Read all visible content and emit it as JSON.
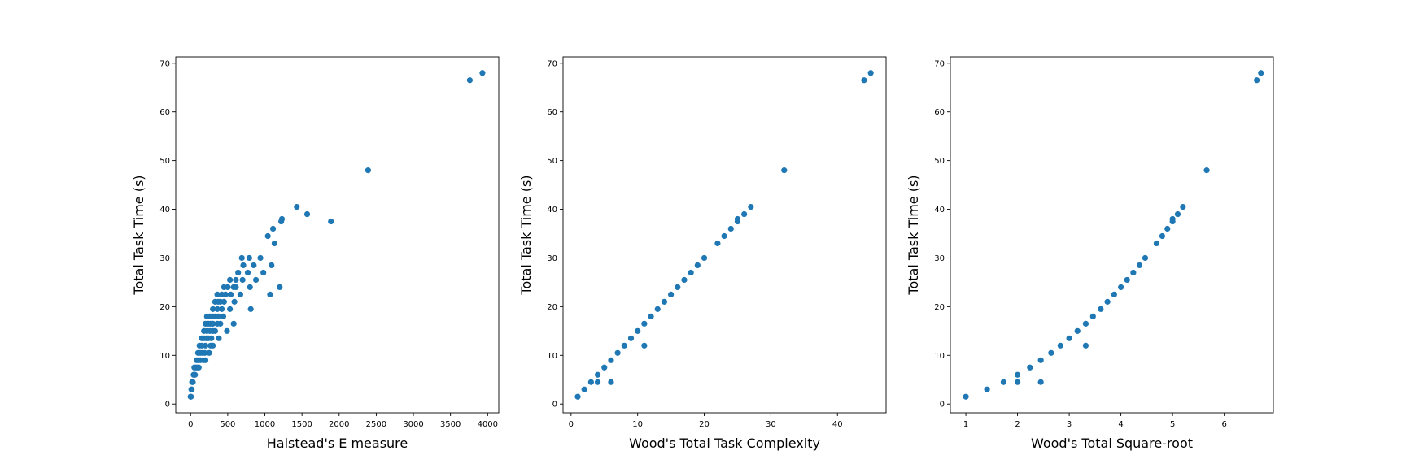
{
  "chart_data": [
    {
      "type": "scatter",
      "title": "",
      "xlabel": "Halstead's E measure",
      "ylabel": "Total Task Time (s)",
      "xlim": [
        -200,
        4150
      ],
      "ylim": [
        -1.8,
        71.3
      ],
      "xticks": [
        "0",
        "500",
        "1000",
        "1500",
        "2000",
        "2500",
        "3000",
        "3500",
        "4000"
      ],
      "yticks": [
        "0",
        "10",
        "20",
        "30",
        "40",
        "50",
        "60",
        "70"
      ],
      "xtick_values": [
        0,
        500,
        1000,
        1500,
        2000,
        2500,
        3000,
        3500,
        4000
      ],
      "ytick_values": [
        0,
        10,
        20,
        30,
        40,
        50,
        60,
        70
      ],
      "marker_color": "#1f77b4",
      "grid": false,
      "points": [
        [
          0,
          1.5
        ],
        [
          5,
          1.5
        ],
        [
          10,
          3
        ],
        [
          15,
          3
        ],
        [
          20,
          4.5
        ],
        [
          30,
          4.5
        ],
        [
          40,
          6
        ],
        [
          50,
          6
        ],
        [
          60,
          6
        ],
        [
          70,
          7.5
        ],
        [
          50,
          7.5
        ],
        [
          90,
          7.5
        ],
        [
          110,
          7.5
        ],
        [
          80,
          9
        ],
        [
          100,
          9
        ],
        [
          130,
          9
        ],
        [
          170,
          9
        ],
        [
          200,
          9
        ],
        [
          100,
          10.5
        ],
        [
          130,
          10.5
        ],
        [
          160,
          10.5
        ],
        [
          190,
          10.5
        ],
        [
          250,
          10.5
        ],
        [
          120,
          12
        ],
        [
          150,
          12
        ],
        [
          200,
          12
        ],
        [
          270,
          12
        ],
        [
          300,
          12
        ],
        [
          150,
          13.5
        ],
        [
          180,
          13.5
        ],
        [
          210,
          13.5
        ],
        [
          240,
          13.5
        ],
        [
          280,
          13.5
        ],
        [
          380,
          13.5
        ],
        [
          180,
          15
        ],
        [
          220,
          15
        ],
        [
          260,
          15
        ],
        [
          300,
          15
        ],
        [
          330,
          15
        ],
        [
          490,
          15
        ],
        [
          200,
          16.5
        ],
        [
          240,
          16.5
        ],
        [
          270,
          16.5
        ],
        [
          300,
          16.5
        ],
        [
          360,
          16.5
        ],
        [
          400,
          16.5
        ],
        [
          580,
          16.5
        ],
        [
          220,
          18
        ],
        [
          260,
          18
        ],
        [
          300,
          18
        ],
        [
          330,
          18
        ],
        [
          370,
          18
        ],
        [
          440,
          18
        ],
        [
          300,
          19.5
        ],
        [
          360,
          19.5
        ],
        [
          420,
          19.5
        ],
        [
          530,
          19.5
        ],
        [
          810,
          19.5
        ],
        [
          330,
          21
        ],
        [
          370,
          21
        ],
        [
          400,
          21
        ],
        [
          450,
          21
        ],
        [
          590,
          21
        ],
        [
          360,
          22.5
        ],
        [
          420,
          22.5
        ],
        [
          470,
          22.5
        ],
        [
          540,
          22.5
        ],
        [
          670,
          22.5
        ],
        [
          1070,
          22.5
        ],
        [
          450,
          24
        ],
        [
          500,
          24
        ],
        [
          580,
          24
        ],
        [
          610,
          24
        ],
        [
          800,
          24
        ],
        [
          1200,
          24
        ],
        [
          530,
          25.5
        ],
        [
          610,
          25.5
        ],
        [
          700,
          25.5
        ],
        [
          880,
          25.5
        ],
        [
          640,
          27
        ],
        [
          770,
          27
        ],
        [
          980,
          27
        ],
        [
          710,
          28.5
        ],
        [
          850,
          28.5
        ],
        [
          1090,
          28.5
        ],
        [
          690,
          30
        ],
        [
          790,
          30
        ],
        [
          940,
          30
        ],
        [
          1130,
          33
        ],
        [
          1040,
          34.5
        ],
        [
          1110,
          36
        ],
        [
          1220,
          37.5
        ],
        [
          1230,
          38
        ],
        [
          1570,
          39
        ],
        [
          1890,
          37.5
        ],
        [
          1430,
          40.5
        ],
        [
          2390,
          48
        ],
        [
          3760,
          66.5
        ],
        [
          3930,
          68
        ]
      ]
    },
    {
      "type": "scatter",
      "title": "",
      "xlabel": "Wood's Total Task Complexity",
      "ylabel": "Total Task Time (s)",
      "xlim": [
        -1.2,
        47.3
      ],
      "ylim": [
        -1.8,
        71.3
      ],
      "xticks": [
        "0",
        "10",
        "20",
        "30",
        "40"
      ],
      "yticks": [
        "0",
        "10",
        "20",
        "30",
        "40",
        "50",
        "60",
        "70"
      ],
      "xtick_values": [
        0,
        10,
        20,
        30,
        40
      ],
      "ytick_values": [
        0,
        10,
        20,
        30,
        40,
        50,
        60,
        70
      ],
      "marker_color": "#1f77b4",
      "grid": false,
      "points": [
        [
          1,
          1.5
        ],
        [
          2,
          3
        ],
        [
          3,
          4.5
        ],
        [
          4,
          4.5
        ],
        [
          4,
          6
        ],
        [
          5,
          7.5
        ],
        [
          6,
          4.5
        ],
        [
          6,
          9
        ],
        [
          7,
          10.5
        ],
        [
          8,
          12
        ],
        [
          9,
          13.5
        ],
        [
          10,
          15
        ],
        [
          11,
          12
        ],
        [
          11,
          16.5
        ],
        [
          12,
          18
        ],
        [
          13,
          19.5
        ],
        [
          14,
          21
        ],
        [
          15,
          22.5
        ],
        [
          16,
          24
        ],
        [
          17,
          25.5
        ],
        [
          18,
          27
        ],
        [
          19,
          28.5
        ],
        [
          20,
          30
        ],
        [
          22,
          33
        ],
        [
          23,
          34.5
        ],
        [
          24,
          36
        ],
        [
          25,
          37.5
        ],
        [
          25,
          38
        ],
        [
          26,
          39
        ],
        [
          27,
          40.5
        ],
        [
          32,
          48
        ],
        [
          44,
          66.5
        ],
        [
          45,
          68
        ]
      ]
    },
    {
      "type": "scatter",
      "title": "",
      "xlabel": "Wood's Total Square-root",
      "ylabel": "Total Task Time (s)",
      "xlim": [
        0.7,
        6.95
      ],
      "ylim": [
        -1.8,
        71.3
      ],
      "xticks": [
        "1",
        "2",
        "3",
        "4",
        "5",
        "6"
      ],
      "yticks": [
        "0",
        "10",
        "20",
        "30",
        "40",
        "50",
        "60",
        "70"
      ],
      "xtick_values": [
        1,
        2,
        3,
        4,
        5,
        6
      ],
      "ytick_values": [
        0,
        10,
        20,
        30,
        40,
        50,
        60,
        70
      ],
      "marker_color": "#1f77b4",
      "grid": false,
      "points": [
        [
          1.0,
          1.5
        ],
        [
          1.41,
          3
        ],
        [
          1.73,
          4.5
        ],
        [
          2.0,
          4.5
        ],
        [
          2.0,
          6
        ],
        [
          2.24,
          7.5
        ],
        [
          2.45,
          4.5
        ],
        [
          2.45,
          9
        ],
        [
          2.65,
          10.5
        ],
        [
          2.83,
          12
        ],
        [
          3.0,
          13.5
        ],
        [
          3.16,
          15
        ],
        [
          3.32,
          12
        ],
        [
          3.32,
          16.5
        ],
        [
          3.46,
          18
        ],
        [
          3.61,
          19.5
        ],
        [
          3.74,
          21
        ],
        [
          3.87,
          22.5
        ],
        [
          4.0,
          24
        ],
        [
          4.12,
          25.5
        ],
        [
          4.24,
          27
        ],
        [
          4.36,
          28.5
        ],
        [
          4.47,
          30
        ],
        [
          4.69,
          33
        ],
        [
          4.8,
          34.5
        ],
        [
          4.9,
          36
        ],
        [
          5.0,
          37.5
        ],
        [
          5.0,
          38
        ],
        [
          5.1,
          39
        ],
        [
          5.2,
          40.5
        ],
        [
          5.66,
          48
        ],
        [
          6.63,
          66.5
        ],
        [
          6.71,
          68
        ]
      ]
    }
  ]
}
